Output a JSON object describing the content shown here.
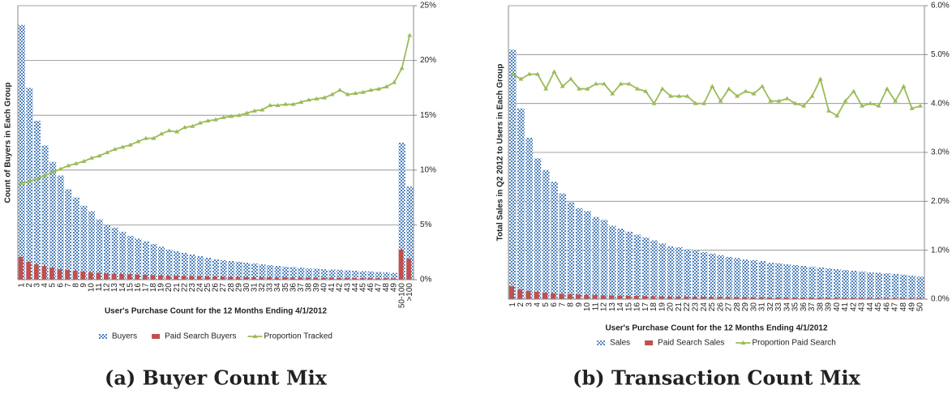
{
  "chart_data": [
    {
      "type": "bar",
      "caption": "(a) Buyer Count Mix",
      "x_label": "User's Purchase Count for the 12 Months Ending 4/1/2012",
      "y_label": "Count of Buyers in Each Group",
      "categories": [
        "1",
        "2",
        "3",
        "4",
        "5",
        "6",
        "7",
        "8",
        "9",
        "10",
        "11",
        "12",
        "13",
        "14",
        "15",
        "16",
        "17",
        "18",
        "19",
        "20",
        "21",
        "22",
        "23",
        "24",
        "25",
        "26",
        "27",
        "28",
        "29",
        "30",
        "31",
        "32",
        "33",
        "34",
        "35",
        "36",
        "37",
        "38",
        "39",
        "40",
        "41",
        "42",
        "43",
        "44",
        "45",
        "46",
        "47",
        "48",
        "49",
        "50-100",
        ">100"
      ],
      "ylim": [
        0,
        100
      ],
      "y2lim": [
        0,
        25
      ],
      "y2ticks": [
        {
          "value": 0,
          "label": "0%"
        },
        {
          "value": 5,
          "label": "5%"
        },
        {
          "value": 10,
          "label": "10%"
        },
        {
          "value": 15,
          "label": "15%"
        },
        {
          "value": 20,
          "label": "20%"
        },
        {
          "value": 25,
          "label": "25%"
        }
      ],
      "grid": true,
      "series": [
        {
          "name": "Buyers",
          "type": "bar",
          "color": "#4f81bd",
          "values": [
            93,
            70,
            58,
            49,
            43,
            38,
            33,
            30,
            27,
            25,
            22,
            20,
            19,
            17.5,
            16,
            15,
            14,
            13,
            12,
            11,
            10.4,
            9.8,
            9.2,
            8.6,
            8,
            7.4,
            7.1,
            6.8,
            6.5,
            6.2,
            5.9,
            5.6,
            5.3,
            5,
            4.7,
            4.6,
            4.4,
            4.1,
            4,
            3.8,
            3.7,
            3.6,
            3.4,
            3.3,
            3.1,
            3,
            2.8,
            2.7,
            2.5,
            50,
            34
          ]
        },
        {
          "name": "Paid Search Buyers",
          "type": "bar",
          "color": "#c0504d",
          "values": [
            8.3,
            6.5,
            5.6,
            5,
            4.4,
            3.8,
            3.6,
            3.3,
            3,
            2.7,
            2.5,
            2.3,
            2.2,
            2.1,
            2,
            1.9,
            1.8,
            1.7,
            1.6,
            1.5,
            1.45,
            1.4,
            1.35,
            1.3,
            1.25,
            1.2,
            1.15,
            1.1,
            1.05,
            1,
            0.95,
            0.9,
            0.9,
            0.85,
            0.85,
            0.8,
            0.8,
            0.75,
            0.75,
            0.7,
            0.7,
            0.65,
            0.65,
            0.6,
            0.6,
            0.6,
            0.55,
            0.55,
            0.5,
            11,
            7.7
          ]
        },
        {
          "name": "Proportion Tracked",
          "type": "line",
          "axis": "y2",
          "color": "#9bbb59",
          "values": [
            8.8,
            9,
            9.2,
            9.5,
            9.8,
            10.1,
            10.4,
            10.6,
            10.8,
            11.1,
            11.3,
            11.6,
            11.9,
            12.1,
            12.3,
            12.6,
            12.9,
            12.9,
            13.3,
            13.6,
            13.5,
            13.9,
            14,
            14.3,
            14.5,
            14.6,
            14.8,
            14.9,
            15,
            15.2,
            15.4,
            15.5,
            15.9,
            15.9,
            16,
            16,
            16.2,
            16.4,
            16.5,
            16.6,
            16.9,
            17.3,
            16.9,
            17,
            17.1,
            17.3,
            17.4,
            17.6,
            18,
            19.3,
            22.3
          ]
        }
      ]
    },
    {
      "type": "bar",
      "caption": "(b) Transaction Count Mix",
      "x_label": "User's Purchase Count for the 12 Months Ending 4/1/2012",
      "y_label": "Total Sales in Q2 2012 to Users in Each Group",
      "categories": [
        "1",
        "2",
        "3",
        "4",
        "5",
        "6",
        "7",
        "8",
        "9",
        "10",
        "11",
        "12",
        "13",
        "14",
        "15",
        "16",
        "17",
        "18",
        "19",
        "20",
        "21",
        "22",
        "23",
        "24",
        "25",
        "26",
        "27",
        "28",
        "29",
        "30",
        "31",
        "32",
        "33",
        "34",
        "35",
        "36",
        "37",
        "38",
        "39",
        "40",
        "41",
        "42",
        "43",
        "44",
        "45",
        "46",
        "47",
        "48",
        "49",
        "50"
      ],
      "ylim": [
        0,
        100
      ],
      "y2lim": [
        0,
        6
      ],
      "y2ticks": [
        {
          "value": 0,
          "label": "0.0%"
        },
        {
          "value": 1,
          "label": "1.0%"
        },
        {
          "value": 2,
          "label": "2.0%"
        },
        {
          "value": 3,
          "label": "3.0%"
        },
        {
          "value": 4,
          "label": "4.0%"
        },
        {
          "value": 5,
          "label": "5.0%"
        },
        {
          "value": 6,
          "label": "6.0%"
        }
      ],
      "grid": true,
      "series": [
        {
          "name": "Sales",
          "type": "bar",
          "color": "#4f81bd",
          "values": [
            85,
            65,
            55,
            48,
            44,
            40,
            36,
            33,
            31,
            30,
            28,
            27,
            25,
            24,
            23,
            22,
            21,
            20,
            19,
            18,
            17.7,
            17,
            16.6,
            16,
            15.5,
            15,
            14.4,
            14,
            13.5,
            13.3,
            13,
            12.4,
            12.2,
            11.9,
            11.6,
            11.3,
            11,
            10.8,
            10.5,
            10.2,
            9.9,
            9.7,
            9.4,
            9.1,
            9,
            8.8,
            8.6,
            8.3,
            8,
            7.7
          ]
        },
        {
          "name": "Paid Search Sales",
          "type": "bar",
          "color": "#c0504d",
          "values": [
            4.4,
            3.3,
            2.8,
            2.5,
            2.2,
            2,
            1.8,
            1.7,
            1.6,
            1.5,
            1.4,
            1.3,
            1.25,
            1.2,
            1.15,
            1.1,
            1.05,
            1,
            0.95,
            0.9,
            0.9,
            0.85,
            0.85,
            0.8,
            0.8,
            0.75,
            0.75,
            0.7,
            0.7,
            0.65,
            0.65,
            0.6,
            0.6,
            0.6,
            0.55,
            0.55,
            0.55,
            0.5,
            0.5,
            0.5,
            0.45,
            0.45,
            0.45,
            0.45,
            0.4,
            0.4,
            0.4,
            0.4,
            0.4,
            0.4
          ]
        },
        {
          "name": "Proportion Paid Search",
          "type": "line",
          "axis": "y2",
          "color": "#9bbb59",
          "values": [
            4.6,
            4.5,
            4.6,
            4.6,
            4.3,
            4.65,
            4.35,
            4.5,
            4.3,
            4.3,
            4.4,
            4.4,
            4.2,
            4.4,
            4.4,
            4.3,
            4.25,
            4,
            4.3,
            4.15,
            4.15,
            4.15,
            4,
            4,
            4.35,
            4.05,
            4.3,
            4.15,
            4.25,
            4.2,
            4.35,
            4.05,
            4.05,
            4.1,
            4,
            3.95,
            4.15,
            4.5,
            3.85,
            3.75,
            4.05,
            4.25,
            3.95,
            4,
            3.95,
            4.3,
            4.05,
            4.35,
            3.9,
            3.95
          ]
        }
      ]
    }
  ]
}
